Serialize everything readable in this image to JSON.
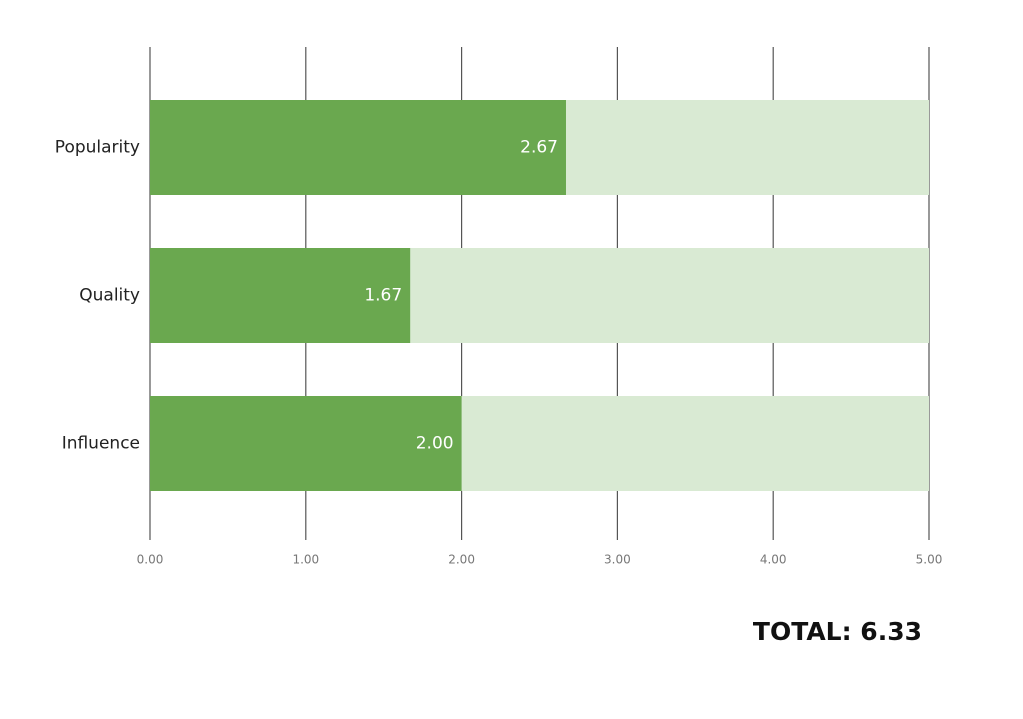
{
  "chart_data": {
    "type": "hbar",
    "categories": [
      "Popularity",
      "Quality",
      "Influence"
    ],
    "values": [
      2.67,
      1.67,
      2.0
    ],
    "value_labels": [
      "2.67",
      "1.67",
      "2.00"
    ],
    "color": "#6aa84f",
    "track_color": "#d9ead3",
    "xlim": [
      0,
      5
    ],
    "xticks": [
      {
        "value": 0,
        "label": "0.00"
      },
      {
        "value": 1,
        "label": "1.00"
      },
      {
        "value": 2,
        "label": "2.00"
      },
      {
        "value": 3,
        "label": "3.00"
      },
      {
        "value": 4,
        "label": "4.00"
      },
      {
        "value": 5,
        "label": "5.00"
      }
    ],
    "grid": true,
    "total_label": "TOTAL: 6.33"
  }
}
